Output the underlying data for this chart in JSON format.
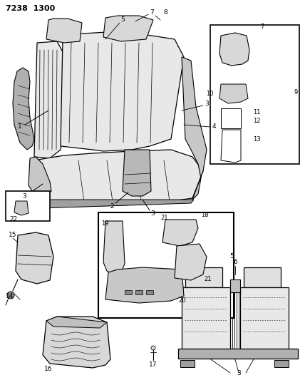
{
  "title": "7238 1300",
  "bg_color": "#ffffff",
  "fig_width": 4.28,
  "fig_height": 5.33,
  "dpi": 100,
  "seat_color": "#e8e8e8",
  "seat_dark": "#c8c8c8",
  "seat_mid": "#d8d8d8"
}
